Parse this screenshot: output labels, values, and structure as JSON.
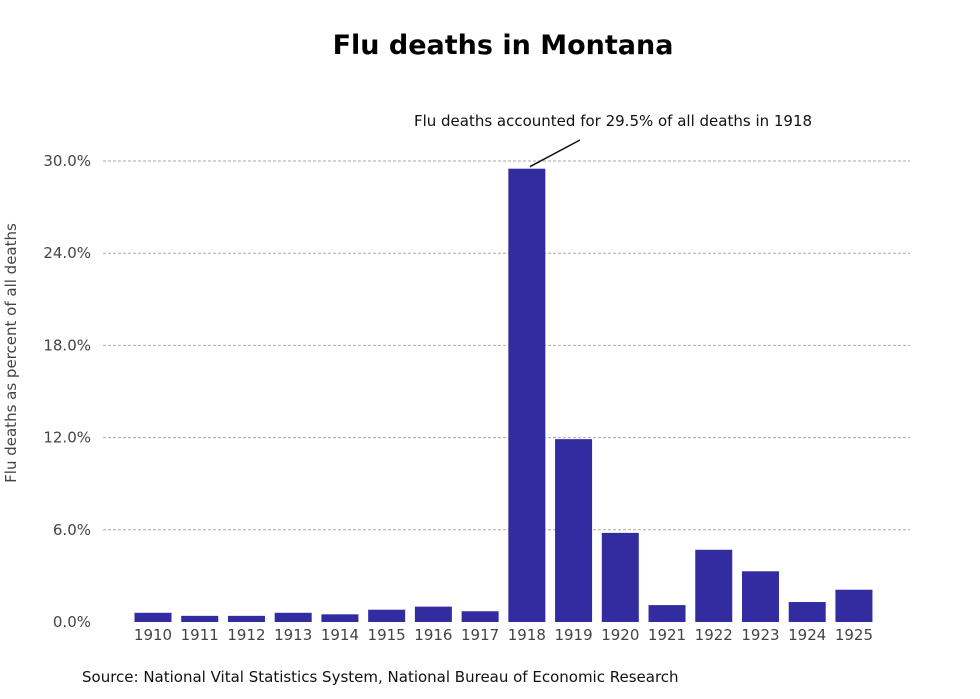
{
  "chart_data": {
    "type": "bar",
    "title": "Flu deaths in Montana",
    "xlabel": "",
    "ylabel": "Flu deaths as percent of all deaths",
    "categories": [
      "1910",
      "1911",
      "1912",
      "1913",
      "1914",
      "1915",
      "1916",
      "1917",
      "1918",
      "1919",
      "1920",
      "1921",
      "1922",
      "1923",
      "1924",
      "1925"
    ],
    "values": [
      0.6,
      0.4,
      0.4,
      0.6,
      0.5,
      0.8,
      1.0,
      0.7,
      29.5,
      11.9,
      5.8,
      1.1,
      4.7,
      3.3,
      1.3,
      2.1
    ],
    "ylim": [
      0,
      30
    ],
    "yticks": [
      0,
      6,
      12,
      18,
      24,
      30
    ],
    "ytick_labels": [
      "0.0%",
      "6.0%",
      "12.0%",
      "18.0%",
      "24.0%",
      "30.0%"
    ],
    "grid": "horizontal dashed",
    "bar_color": "#332ca0",
    "annotation": {
      "text": "Flu deaths accounted for 29.5% of all deaths in 1918",
      "target_category": "1918",
      "target_value": 29.5
    },
    "source": "Source: National Vital Statistics System, National Bureau of Economic Research"
  }
}
